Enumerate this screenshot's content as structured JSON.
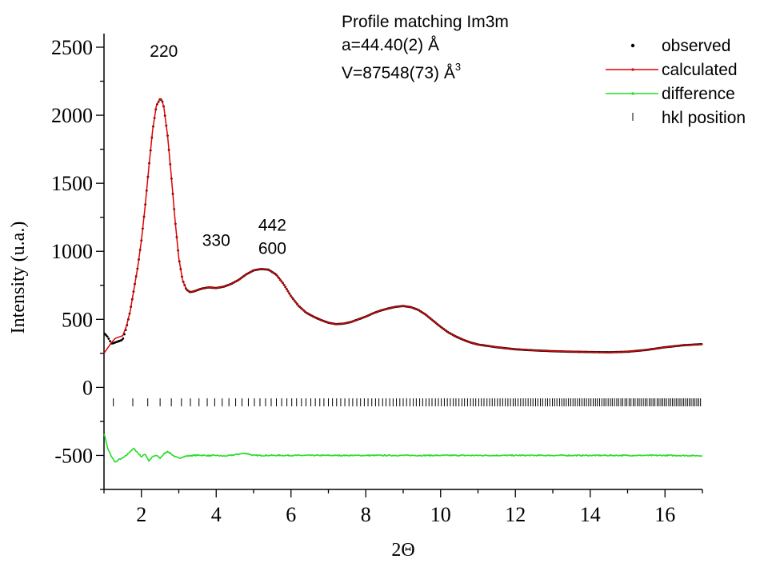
{
  "chart_data": {
    "type": "line",
    "title": "",
    "xlabel": "2Θ",
    "ylabel": "Intensity (u.a.)",
    "xlim": [
      1,
      17
    ],
    "ylim": [
      -750,
      2600
    ],
    "x_ticks": [
      2,
      4,
      6,
      8,
      10,
      12,
      14,
      16
    ],
    "x_tick_labels": [
      "2",
      "4",
      "6",
      "8",
      "10",
      "12",
      "14",
      "16"
    ],
    "y_ticks": [
      -500,
      0,
      500,
      1000,
      1500,
      2000,
      2500
    ],
    "y_tick_labels": [
      "-500",
      "0",
      "500",
      "1000",
      "1500",
      "2000",
      "2500"
    ],
    "grid": false,
    "legend_position": "top-right",
    "colors": {
      "observed": "#000000",
      "calculated": "#e00000",
      "difference": "#22dd22",
      "hkl": "#000000"
    },
    "info_box": [
      "Profile matching Im3m",
      "a=44.40(2) Å",
      "V=87548(73) Å"
    ],
    "info_superscript": "3",
    "peak_labels": [
      {
        "text": "220",
        "x": 2.6,
        "y": 2430
      },
      {
        "text": "330",
        "x": 4.0,
        "y": 1040
      },
      {
        "text": "442",
        "x": 5.5,
        "y": 1150
      },
      {
        "text": "600",
        "x": 5.5,
        "y": 980
      }
    ],
    "profile": {
      "x": [
        1.0,
        1.1,
        1.2,
        1.3,
        1.4,
        1.5,
        1.6,
        1.7,
        1.8,
        1.9,
        2.0,
        2.1,
        2.2,
        2.3,
        2.4,
        2.5,
        2.55,
        2.6,
        2.7,
        2.8,
        2.9,
        3.0,
        3.1,
        3.2,
        3.3,
        3.4,
        3.5,
        3.6,
        3.8,
        4.0,
        4.2,
        4.4,
        4.6,
        4.8,
        5.0,
        5.2,
        5.4,
        5.6,
        5.8,
        6.0,
        6.2,
        6.4,
        6.6,
        6.8,
        7.0,
        7.2,
        7.4,
        7.6,
        7.8,
        8.0,
        8.2,
        8.4,
        8.6,
        8.8,
        9.0,
        9.2,
        9.4,
        9.6,
        9.8,
        10.0,
        10.2,
        10.4,
        10.6,
        10.8,
        11.0,
        11.5,
        12.0,
        12.5,
        13.0,
        13.5,
        14.0,
        14.5,
        15.0,
        15.5,
        16.0,
        16.5,
        17.0
      ],
      "y": [
        250,
        290,
        330,
        360,
        370,
        380,
        450,
        560,
        720,
        880,
        1080,
        1330,
        1620,
        1890,
        2070,
        2120,
        2110,
        2060,
        1850,
        1550,
        1230,
        950,
        790,
        720,
        700,
        705,
        715,
        725,
        735,
        730,
        740,
        760,
        790,
        830,
        860,
        870,
        865,
        830,
        760,
        670,
        600,
        550,
        520,
        495,
        475,
        465,
        468,
        480,
        500,
        520,
        545,
        565,
        580,
        592,
        598,
        590,
        570,
        535,
        490,
        445,
        405,
        375,
        350,
        330,
        315,
        295,
        280,
        272,
        266,
        262,
        260,
        258,
        262,
        275,
        295,
        310,
        318
      ]
    },
    "observed_deviation": {
      "x": [
        1.0,
        1.1,
        1.2,
        1.3,
        1.4,
        1.5,
        1.6,
        1.7
      ],
      "y": [
        400,
        370,
        320,
        330,
        340,
        350,
        440,
        560
      ]
    },
    "difference": {
      "x": [
        1.0,
        1.05,
        1.1,
        1.2,
        1.3,
        1.4,
        1.5,
        1.6,
        1.7,
        1.8,
        1.9,
        2.0,
        2.1,
        2.2,
        2.3,
        2.4,
        2.5,
        2.6,
        2.7,
        2.8,
        2.9,
        3.0,
        3.2,
        3.4,
        3.6,
        3.8,
        4.0,
        4.2,
        4.4,
        4.6,
        4.8,
        5.0,
        5.5,
        6.0,
        7.0,
        8.0,
        9.0,
        10.0,
        11.0,
        12.0,
        13.0,
        14.0,
        15.0,
        16.0,
        17.0
      ],
      "y": [
        -340,
        -390,
        -450,
        -510,
        -550,
        -530,
        -520,
        -500,
        -470,
        -450,
        -480,
        -510,
        -490,
        -540,
        -510,
        -500,
        -520,
        -490,
        -470,
        -490,
        -510,
        -520,
        -505,
        -500,
        -498,
        -502,
        -500,
        -505,
        -500,
        -490,
        -485,
        -500,
        -500,
        -500,
        -500,
        -500,
        -500,
        -500,
        -500,
        -500,
        -500,
        -500,
        -500,
        -500,
        -502
      ]
    },
    "hkl_positions": [
      1.25,
      1.77,
      2.17,
      2.5,
      2.8,
      3.07,
      3.31,
      3.54,
      3.76,
      3.96,
      4.16,
      4.34,
      4.52,
      4.69,
      4.86,
      5.02,
      5.17,
      5.32,
      5.47,
      5.61,
      5.75,
      5.89,
      6.02,
      6.15,
      6.28,
      6.4,
      6.53,
      6.65,
      6.77,
      6.88,
      7.0,
      7.11,
      7.22,
      7.33,
      7.44,
      7.55,
      7.65,
      7.76,
      7.86,
      7.96,
      8.06,
      8.16,
      8.26,
      8.35,
      8.45,
      8.54,
      8.64,
      8.73,
      8.82,
      8.91,
      9.0,
      9.09,
      9.18,
      9.27,
      9.35,
      9.44,
      9.52,
      9.61,
      9.69,
      9.77,
      9.86,
      9.94,
      10.02,
      10.1,
      10.18,
      10.26,
      10.34,
      10.41,
      10.49,
      10.57,
      10.64,
      10.72,
      10.8,
      10.87,
      10.94,
      11.02,
      11.09,
      11.16,
      11.24,
      11.31,
      11.38,
      11.45,
      11.52,
      11.59,
      11.66,
      11.73,
      11.8,
      11.87,
      11.94,
      12.0,
      12.07,
      12.14,
      12.21,
      12.27,
      12.34,
      12.41,
      12.47,
      12.54,
      12.6,
      12.67,
      12.73,
      12.8,
      12.86,
      12.92,
      12.99,
      13.05,
      13.11,
      13.18,
      13.24,
      13.3,
      13.36,
      13.42,
      13.48,
      13.54,
      13.6,
      13.66,
      13.72,
      13.78,
      13.84,
      13.9,
      13.96,
      14.02,
      14.08,
      14.14,
      14.19,
      14.25,
      14.31,
      14.37,
      14.42,
      14.48,
      14.54,
      14.59,
      14.65,
      14.71,
      14.76,
      14.82,
      14.87,
      14.93,
      14.98,
      15.04,
      15.09,
      15.15,
      15.2,
      15.26,
      15.31,
      15.36,
      15.42,
      15.47,
      15.52,
      15.58,
      15.63,
      15.68,
      15.73,
      15.79,
      15.84,
      15.89,
      15.94,
      15.99,
      16.04,
      16.1,
      16.15,
      16.2,
      16.25,
      16.3,
      16.35,
      16.4,
      16.45,
      16.5,
      16.55,
      16.6,
      16.65,
      16.7,
      16.75,
      16.8,
      16.85,
      16.9,
      16.95
    ],
    "hkl_y": -110,
    "series": [
      {
        "name": "observed",
        "style": "dots"
      },
      {
        "name": "calculated",
        "style": "line"
      },
      {
        "name": "difference",
        "style": "line"
      },
      {
        "name": "hkl position",
        "style": "ticks"
      }
    ]
  }
}
